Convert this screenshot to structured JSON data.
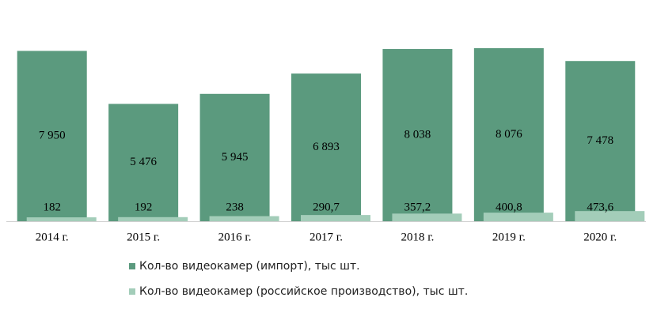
{
  "chart_data": {
    "type": "bar",
    "categories": [
      "2014 г.",
      "2015 г.",
      "2016 г.",
      "2017 г.",
      "2018 г.",
      "2019 г.",
      "2020 г."
    ],
    "series": [
      {
        "name": "Кол-во видеокамер (импорт), тыс шт.",
        "color": "#5b9a7e",
        "values": [
          7950,
          5476,
          5945,
          6893,
          8038,
          8076,
          7478
        ],
        "value_labels": [
          "7 950",
          "5 476",
          "5 945",
          "6 893",
          "8 038",
          "8 076",
          "7 478"
        ]
      },
      {
        "name": "Кол-во видеокамер (российское производство), тыс шт.",
        "color": "#a3cdb9",
        "values": [
          182,
          192,
          238,
          290.7,
          357.2,
          400.8,
          473.6
        ],
        "value_labels": [
          "182",
          "192",
          "238",
          "290,7",
          "357,2",
          "400,8",
          "473,6"
        ]
      }
    ]
  }
}
